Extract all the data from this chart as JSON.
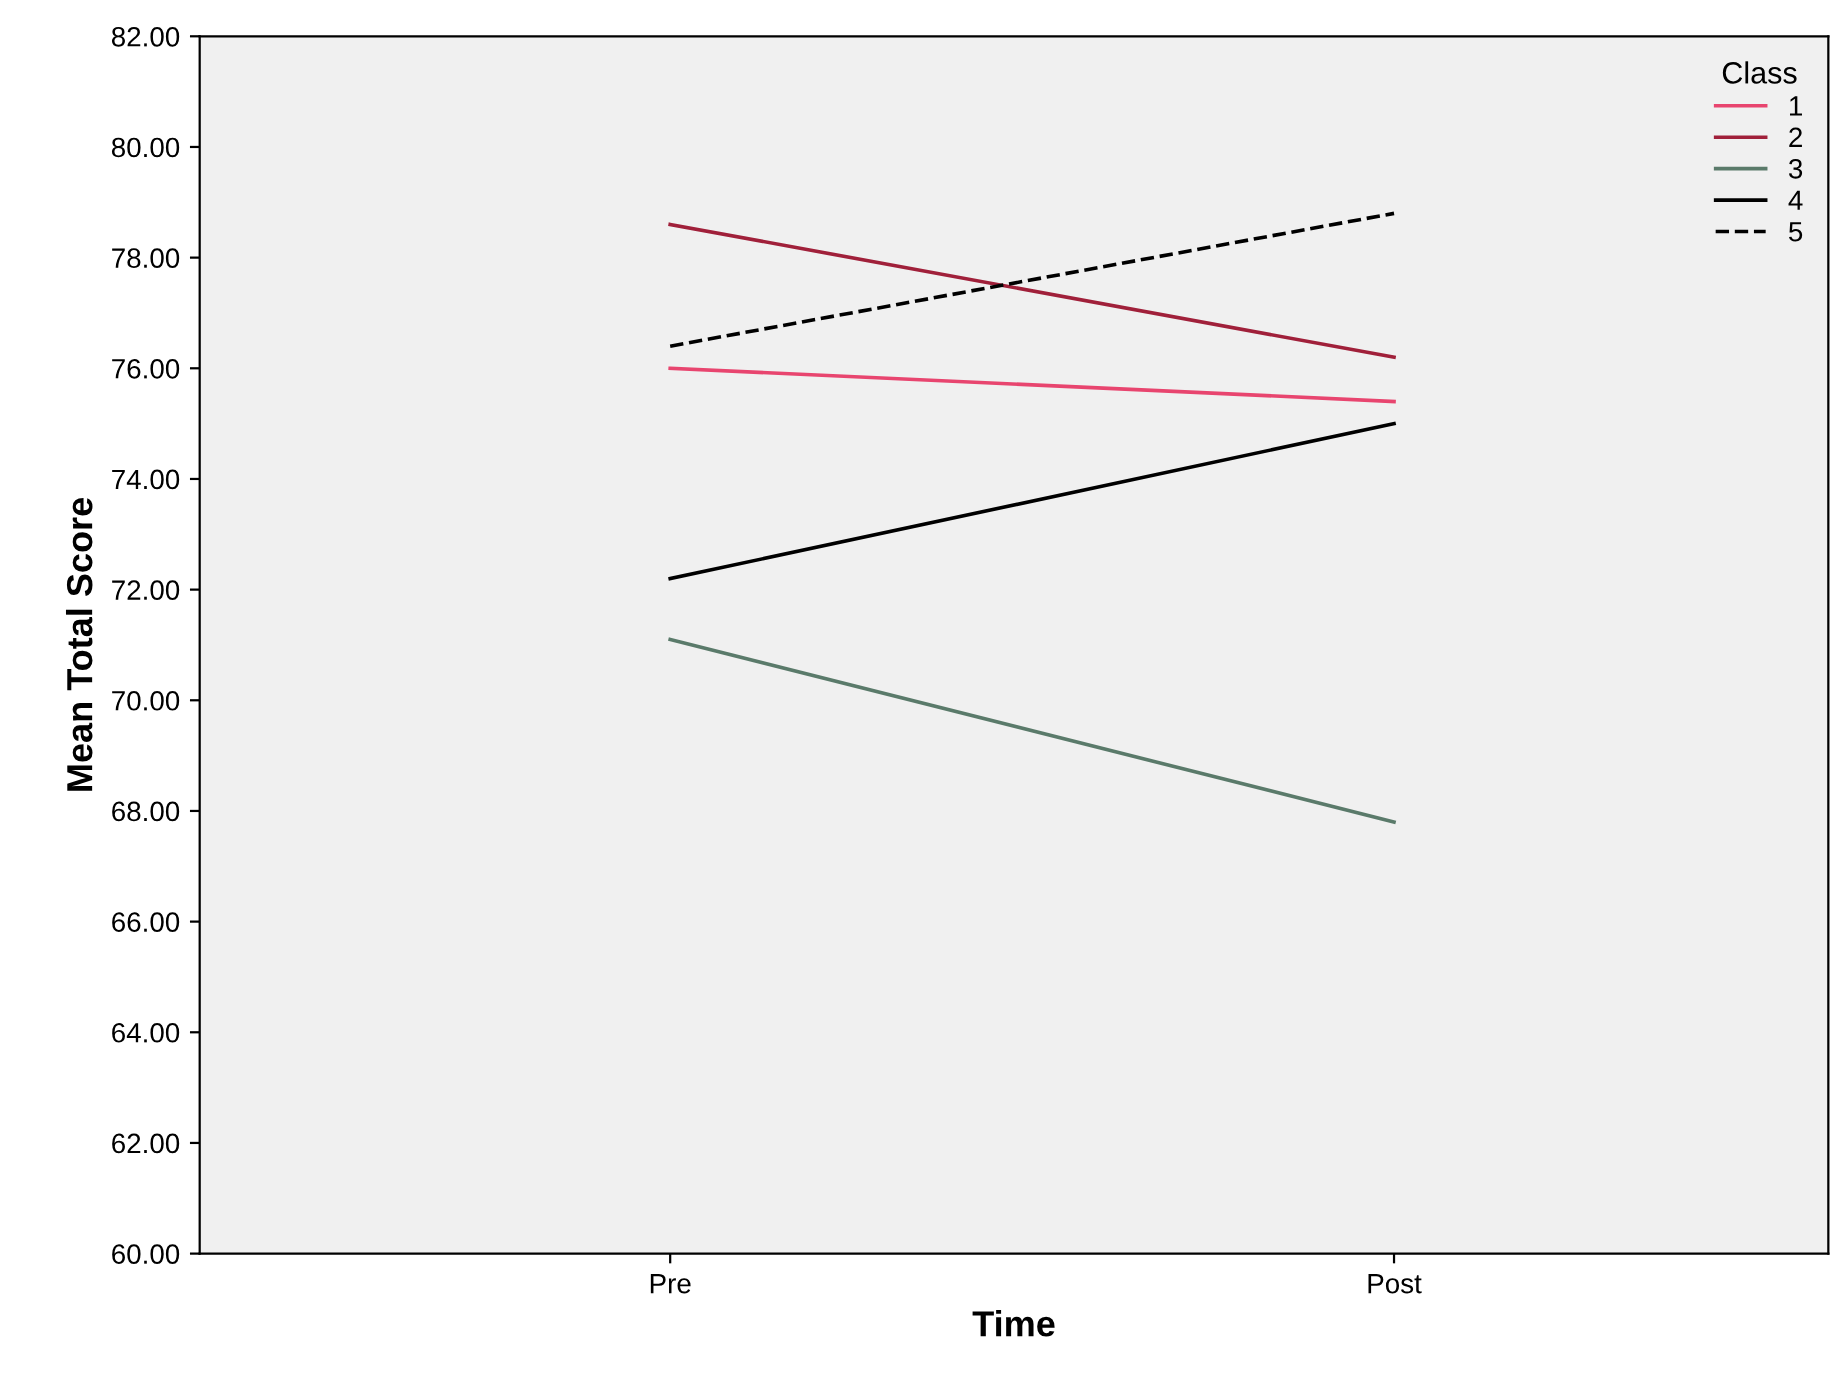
{
  "chart_data": {
    "type": "line",
    "xlabel": "Time",
    "ylabel": "Mean Total Score",
    "legend_title": "Class",
    "legend": "top right",
    "grid": false,
    "marker": "none",
    "categories": [
      "Pre",
      "Post"
    ],
    "series": [
      {
        "name": "1",
        "color": "#e8456f",
        "line_style": "solid",
        "values": [
          76.0,
          75.4
        ]
      },
      {
        "name": "2",
        "color": "#a0203a",
        "line_style": "solid",
        "values": [
          78.6,
          76.2
        ]
      },
      {
        "name": "3",
        "color": "#5a7a6a",
        "line_style": "solid",
        "values": [
          71.1,
          67.8
        ]
      },
      {
        "name": "4",
        "color": "#000000",
        "line_style": "solid",
        "values": [
          72.2,
          75.0
        ]
      },
      {
        "name": "5",
        "color": "#000000",
        "line_style": "dashed",
        "values": [
          76.4,
          78.8
        ]
      }
    ],
    "ylim": [
      60,
      82
    ],
    "yticks": [
      {
        "value": 60,
        "label": "60.00"
      },
      {
        "value": 62,
        "label": "62.00"
      },
      {
        "value": 64,
        "label": "64.00"
      },
      {
        "value": 66,
        "label": "66.00"
      },
      {
        "value": 68,
        "label": "68.00"
      },
      {
        "value": 70,
        "label": "70.00"
      },
      {
        "value": 72,
        "label": "72.00"
      },
      {
        "value": 74,
        "label": "74.00"
      },
      {
        "value": 76,
        "label": "76.00"
      },
      {
        "value": 78,
        "label": "78.00"
      },
      {
        "value": 80,
        "label": "80.00"
      },
      {
        "value": 82,
        "label": "82.00"
      }
    ]
  }
}
